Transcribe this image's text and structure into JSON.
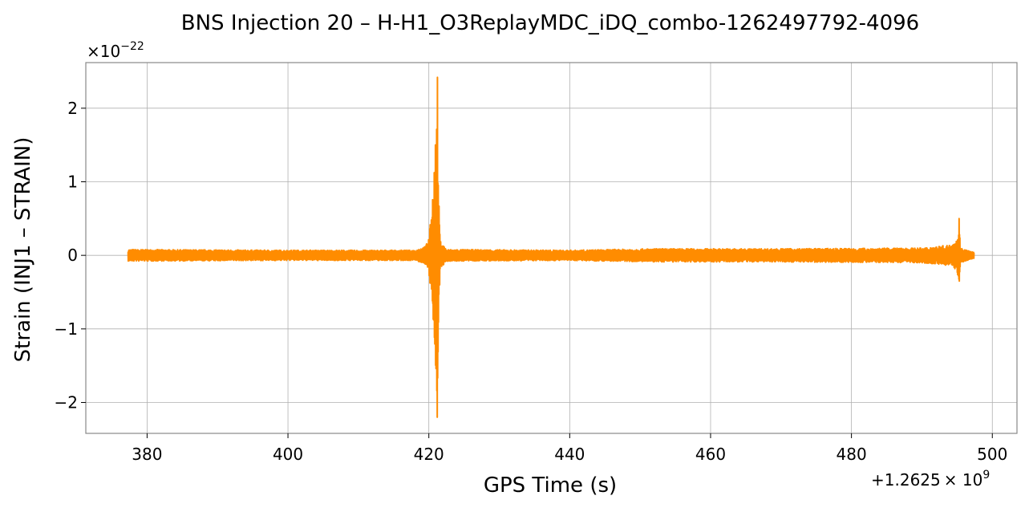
{
  "chart_data": {
    "type": "line",
    "title": "BNS Injection 20 – H-H1_O3ReplayMDC_iDQ_combo-1262497792-4096",
    "xlabel": "GPS Time (s)",
    "ylabel": "Strain (INJ1 – STRAIN)",
    "x_offset_label": "+1.2625",
    "x_offset_exp_label": "× 10",
    "x_offset_exp": "9",
    "y_multiplier_label": "×10",
    "y_multiplier_exp": "−22",
    "x_ticks": [
      380,
      400,
      420,
      440,
      460,
      480,
      500
    ],
    "x_tick_labels": [
      "380",
      "400",
      "420",
      "440",
      "460",
      "480",
      "500"
    ],
    "y_ticks": [
      -2,
      -1,
      0,
      1,
      2
    ],
    "y_tick_labels": [
      "−2",
      "−1",
      "0",
      "1",
      "2"
    ],
    "xlim": [
      371.3,
      503.5
    ],
    "ylim": [
      -2.42,
      2.62
    ],
    "grid": true,
    "color": "#ff8c00",
    "series": [
      {
        "x_range": [
          377.3,
          497.4
        ],
        "envelope": [
          {
            "x": 377.3,
            "amp": 0.08
          },
          {
            "x": 400.0,
            "amp": 0.07
          },
          {
            "x": 418.0,
            "amp": 0.07
          },
          {
            "x": 419.5,
            "amp": 0.12
          },
          {
            "x": 420.0,
            "amp": 0.25
          },
          {
            "x": 420.4,
            "amp": 0.6
          },
          {
            "x": 420.7,
            "amp": 1.1
          },
          {
            "x": 421.0,
            "amp": 1.7
          },
          {
            "x": 421.2,
            "amp": 2.2
          },
          {
            "x": 421.35,
            "amp": 1.0
          },
          {
            "x": 421.6,
            "amp": 0.2
          },
          {
            "x": 422.5,
            "amp": 0.08
          },
          {
            "x": 440.0,
            "amp": 0.07
          },
          {
            "x": 452.0,
            "amp": 0.09
          },
          {
            "x": 470.0,
            "amp": 0.09
          },
          {
            "x": 490.0,
            "amp": 0.1
          },
          {
            "x": 494.0,
            "amp": 0.14
          },
          {
            "x": 495.0,
            "amp": 0.22
          },
          {
            "x": 495.3,
            "amp": 0.4
          },
          {
            "x": 495.5,
            "amp": 0.1
          },
          {
            "x": 497.4,
            "amp": 0.04
          }
        ],
        "peak": {
          "x": 421.2,
          "max": 2.42,
          "min": -2.2
        },
        "glitch": {
          "x": 495.3,
          "max": 0.5,
          "min": -0.35
        }
      }
    ]
  }
}
